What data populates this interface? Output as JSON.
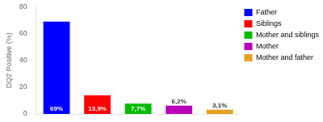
{
  "chart_data": {
    "type": "bar",
    "categories": [
      "Father",
      "Siblings",
      "Mother and siblings",
      "Mother",
      "Mother and father"
    ],
    "values": [
      69,
      13.9,
      7.7,
      6.2,
      3.1
    ],
    "value_labels": [
      "69%",
      "13,9%",
      "7,7%",
      "6,2%",
      "3,1%"
    ],
    "colors": [
      "#0000ff",
      "#ff0000",
      "#00bb00",
      "#bb00bb",
      "#e8a020"
    ],
    "ylabel": "DQ2 Positive (%)",
    "ylim": [
      0,
      80
    ],
    "yticks": [
      0,
      20,
      40,
      60,
      80
    ],
    "grid": false,
    "legend": "right",
    "data_labels": true,
    "tick_labels": "y"
  }
}
